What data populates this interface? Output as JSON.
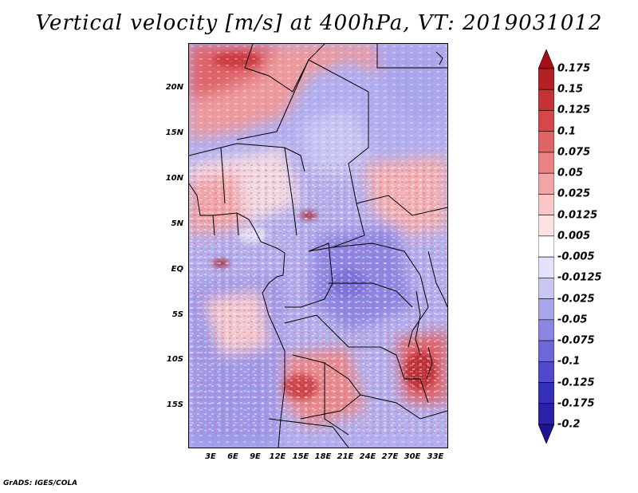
{
  "title": "Vertical velocity [m/s] at 400hPa, VT: 2019031012",
  "footer": "GrADS: IGES/COLA",
  "map": {
    "variable": "Vertical velocity",
    "units": "m/s",
    "level": "400hPa",
    "valid_time": "2019031012",
    "lat_labels": [
      "20N",
      "15N",
      "10N",
      "5N",
      "EQ",
      "5S",
      "10S",
      "15S"
    ],
    "lon_labels": [
      "3E",
      "6E",
      "9E",
      "12E",
      "15E",
      "18E",
      "21E",
      "24E",
      "27E",
      "30E",
      "33E"
    ]
  },
  "colorbar": {
    "labels": [
      "0.175",
      "0.15",
      "0.125",
      "0.1",
      "0.075",
      "0.05",
      "0.025",
      "0.0125",
      "0.005",
      "-0.005",
      "-0.0125",
      "-0.025",
      "-0.05",
      "-0.075",
      "-0.1",
      "-0.125",
      "-0.175",
      "-0.2"
    ],
    "colors": [
      "#a50f15",
      "#b52025",
      "#c63136",
      "#d6474a",
      "#e06366",
      "#ea8284",
      "#f2a5a6",
      "#f8c6c6",
      "#fbe2e2",
      "#ffffff",
      "#e2e2fb",
      "#c9c6f2",
      "#aaa6eb",
      "#8b86e3",
      "#6d68d9",
      "#4f4acd",
      "#3630b8",
      "#2a22a6",
      "#1e148f"
    ]
  }
}
